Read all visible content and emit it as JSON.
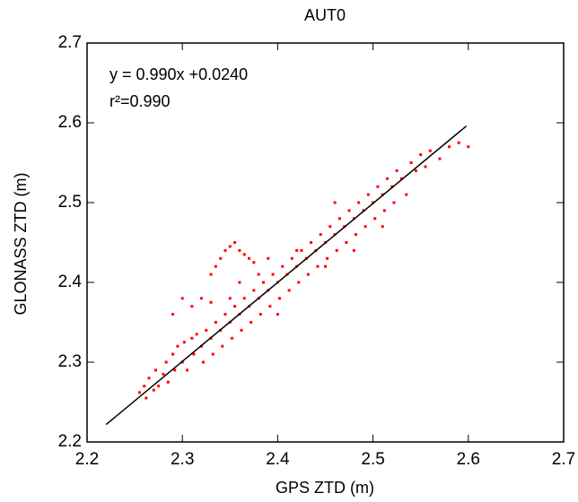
{
  "chart_data": {
    "type": "scatter",
    "title": "AUT0",
    "x_label": "GPS ZTD (m)",
    "y_label": "GLONASS ZTD (m)",
    "annotations": [
      "y = 0.990x +0.0240",
      "r²=0.990"
    ],
    "color": "#ff0000",
    "x": [
      2.255,
      2.26,
      2.262,
      2.265,
      2.27,
      2.272,
      2.275,
      2.28,
      2.283,
      2.285,
      2.29,
      2.292,
      2.295,
      2.3,
      2.302,
      2.305,
      2.31,
      2.312,
      2.315,
      2.32,
      2.322,
      2.325,
      2.33,
      2.332,
      2.335,
      2.34,
      2.342,
      2.345,
      2.35,
      2.352,
      2.355,
      2.36,
      2.362,
      2.365,
      2.37,
      2.372,
      2.375,
      2.38,
      2.382,
      2.385,
      2.39,
      2.392,
      2.395,
      2.4,
      2.402,
      2.405,
      2.41,
      2.412,
      2.415,
      2.42,
      2.422,
      2.425,
      2.43,
      2.432,
      2.435,
      2.44,
      2.442,
      2.445,
      2.45,
      2.452,
      2.455,
      2.46,
      2.462,
      2.465,
      2.47,
      2.472,
      2.475,
      2.48,
      2.482,
      2.485,
      2.49,
      2.492,
      2.495,
      2.5,
      2.502,
      2.505,
      2.51,
      2.512,
      2.515,
      2.52,
      2.522,
      2.525,
      2.53,
      2.535,
      2.54,
      2.545,
      2.55,
      2.555,
      2.56,
      2.57,
      2.58,
      2.6,
      2.59,
      2.345,
      2.35,
      2.355,
      2.36,
      2.365,
      2.37,
      2.375,
      2.34,
      2.335,
      2.33,
      2.35,
      2.33,
      2.32,
      2.31,
      2.3,
      2.29,
      2.36,
      2.38,
      2.39,
      2.42,
      2.46,
      2.48,
      2.51,
      2.45,
      2.4
    ],
    "values": [
      2.262,
      2.27,
      2.255,
      2.28,
      2.265,
      2.29,
      2.27,
      2.285,
      2.3,
      2.275,
      2.31,
      2.29,
      2.32,
      2.3,
      2.325,
      2.29,
      2.33,
      2.31,
      2.335,
      2.32,
      2.3,
      2.34,
      2.33,
      2.31,
      2.35,
      2.34,
      2.32,
      2.36,
      2.35,
      2.33,
      2.37,
      2.36,
      2.34,
      2.38,
      2.37,
      2.35,
      2.39,
      2.38,
      2.36,
      2.4,
      2.39,
      2.37,
      2.41,
      2.4,
      2.38,
      2.42,
      2.41,
      2.39,
      2.43,
      2.42,
      2.4,
      2.44,
      2.43,
      2.41,
      2.45,
      2.44,
      2.42,
      2.46,
      2.45,
      2.43,
      2.47,
      2.46,
      2.44,
      2.48,
      2.47,
      2.45,
      2.49,
      2.48,
      2.46,
      2.5,
      2.49,
      2.47,
      2.51,
      2.5,
      2.48,
      2.52,
      2.51,
      2.49,
      2.53,
      2.52,
      2.5,
      2.54,
      2.53,
      2.51,
      2.55,
      2.54,
      2.56,
      2.545,
      2.565,
      2.555,
      2.57,
      2.57,
      2.575,
      2.44,
      2.445,
      2.45,
      2.44,
      2.435,
      2.43,
      2.425,
      2.43,
      2.42,
      2.41,
      2.38,
      2.375,
      2.38,
      2.37,
      2.38,
      2.36,
      2.4,
      2.41,
      2.43,
      2.44,
      2.5,
      2.44,
      2.47,
      2.42,
      2.36
    ],
    "fit_line": {
      "x": [
        2.22,
        2.598
      ],
      "y": [
        2.2218,
        2.59602
      ],
      "color": "#000000"
    },
    "xlim": [
      2.2,
      2.7
    ],
    "ylim": [
      2.2,
      2.7
    ],
    "xticks": [
      2.2,
      2.3,
      2.4,
      2.5,
      2.6,
      2.7
    ],
    "yticks": [
      2.2,
      2.3,
      2.4,
      2.5,
      2.6,
      2.7
    ]
  }
}
